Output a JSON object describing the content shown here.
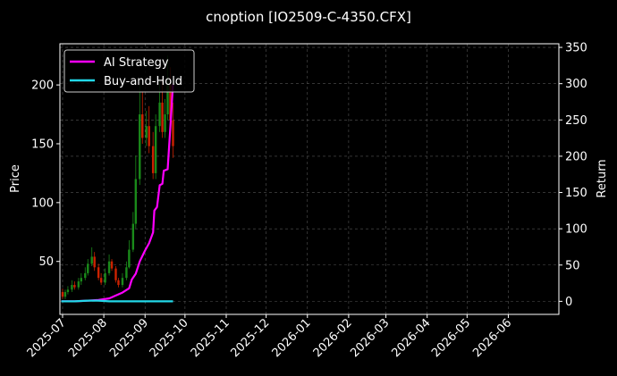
{
  "chart_data": {
    "type": "line",
    "title": "cnoption [IO2509-C-4350.CFX]",
    "xlabel": "",
    "ylabel": "Price",
    "y2label": "Return",
    "x_ticks": [
      "2025-07",
      "2025-08",
      "2025-09",
      "2025-10",
      "2025-11",
      "2025-12",
      "2026-01",
      "2026-02",
      "2026-03",
      "2026-04",
      "2026-05",
      "2026-06"
    ],
    "x_range": [
      "2025-06-29",
      "2026-07-09"
    ],
    "ylim": [
      5,
      235
    ],
    "y_ticks": [
      50,
      100,
      150,
      200
    ],
    "y2lim": [
      -18,
      355
    ],
    "y2_ticks": [
      0,
      50,
      100,
      150,
      200,
      250,
      300,
      350
    ],
    "grid": true,
    "legend_position": "top-left",
    "price_candles": {
      "up_color": "#1a8a1a",
      "down_color": "#cc2200",
      "dates": [
        "2025-07-01",
        "2025-07-03",
        "2025-07-05",
        "2025-07-08",
        "2025-07-10",
        "2025-07-13",
        "2025-07-15",
        "2025-07-18",
        "2025-07-20",
        "2025-07-23",
        "2025-07-25",
        "2025-07-28",
        "2025-07-30",
        "2025-08-02",
        "2025-08-05",
        "2025-08-07",
        "2025-08-10",
        "2025-08-12",
        "2025-08-15",
        "2025-08-18",
        "2025-08-20",
        "2025-08-23",
        "2025-08-25",
        "2025-08-28",
        "2025-08-30",
        "2025-09-02",
        "2025-09-04",
        "2025-09-07",
        "2025-09-09",
        "2025-09-12",
        "2025-09-14",
        "2025-09-16",
        "2025-09-18",
        "2025-09-20",
        "2025-09-22"
      ],
      "open": [
        24,
        20,
        24,
        26,
        30,
        28,
        33,
        36,
        40,
        48,
        54,
        45,
        36,
        32,
        40,
        50,
        44,
        34,
        30,
        36,
        45,
        60,
        82,
        120,
        175,
        155,
        165,
        148,
        125,
        165,
        185,
        160,
        175,
        200,
        170
      ],
      "close": [
        20,
        24,
        26,
        30,
        28,
        33,
        36,
        40,
        48,
        54,
        45,
        36,
        32,
        40,
        50,
        44,
        34,
        30,
        36,
        45,
        60,
        82,
        120,
        175,
        155,
        165,
        148,
        125,
        165,
        185,
        160,
        175,
        200,
        170,
        148
      ],
      "high": [
        27,
        26,
        29,
        34,
        33,
        36,
        40,
        45,
        52,
        62,
        58,
        48,
        40,
        44,
        56,
        52,
        46,
        36,
        40,
        50,
        68,
        92,
        140,
        200,
        195,
        178,
        182,
        160,
        175,
        205,
        205,
        188,
        225,
        215,
        185
      ],
      "low": [
        18,
        18,
        22,
        24,
        26,
        26,
        30,
        34,
        38,
        46,
        42,
        34,
        30,
        30,
        38,
        42,
        32,
        28,
        28,
        34,
        44,
        58,
        78,
        115,
        150,
        148,
        142,
        120,
        120,
        160,
        155,
        155,
        170,
        165,
        138
      ]
    },
    "series": [
      {
        "name": "AI Strategy",
        "color": "#ff00ff",
        "axis": "right",
        "x": [
          "2025-06-30",
          "2025-07-10",
          "2025-07-20",
          "2025-07-28",
          "2025-08-05",
          "2025-08-10",
          "2025-08-15",
          "2025-08-20",
          "2025-08-22",
          "2025-08-25",
          "2025-08-28",
          "2025-09-01",
          "2025-09-04",
          "2025-09-07",
          "2025-09-08",
          "2025-09-10",
          "2025-09-12",
          "2025-09-14",
          "2025-09-15",
          "2025-09-18",
          "2025-09-20",
          "2025-09-22"
        ],
        "values": [
          0,
          0,
          1,
          2,
          4,
          8,
          12,
          18,
          30,
          38,
          55,
          70,
          80,
          95,
          125,
          130,
          160,
          162,
          180,
          182,
          240,
          300
        ]
      },
      {
        "name": "Buy-and-Hold",
        "color": "#22d8e8",
        "axis": "right",
        "x": [
          "2025-06-30",
          "2025-07-10",
          "2025-07-20",
          "2025-07-28",
          "2025-08-05",
          "2025-08-15",
          "2025-08-25",
          "2025-09-05",
          "2025-09-15",
          "2025-09-22"
        ],
        "values": [
          0,
          0,
          1,
          1,
          0,
          0,
          0,
          0,
          0,
          0
        ]
      }
    ]
  }
}
